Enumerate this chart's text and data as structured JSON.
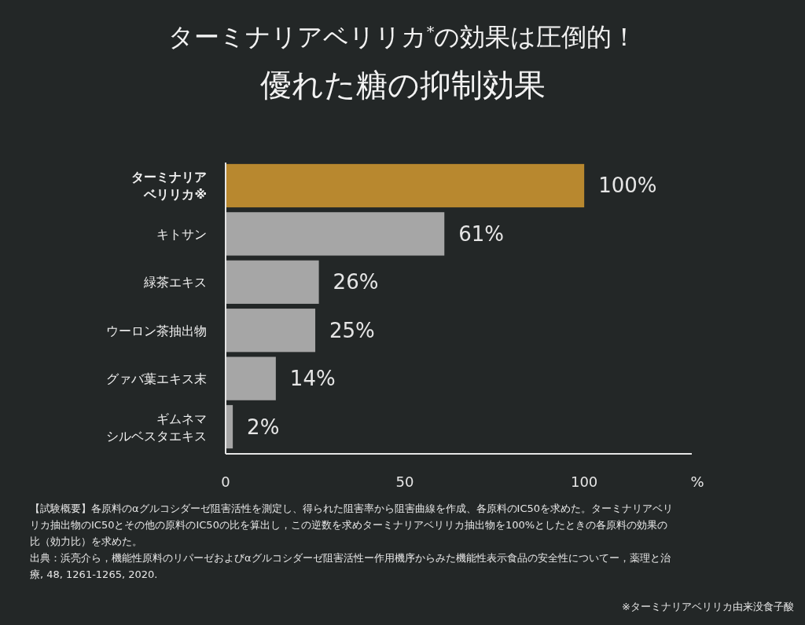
{
  "chart_data": {
    "type": "bar",
    "orientation": "horizontal",
    "title": "ターミナリアベリリカ$^{*}$の効果は圧倒的！",
    "subtitle": "優れた糖の抑制効果",
    "categories": [
      "ターミナリアベリリカ※",
      "キトサン",
      "緑茶エキス",
      "ウーロン茶抽出物",
      "グァバ葉エキス末",
      "ギムネマシルベスタエキス"
    ],
    "values": [
      100,
      61,
      26,
      25,
      14,
      2
    ],
    "colors": [
      "#b8882f",
      "#a6a6a6",
      "#a6a6a6",
      "#a6a6a6",
      "#a6a6a6",
      "#a6a6a6"
    ],
    "value_labels": [
      "100%",
      "61%",
      "26%",
      "25%",
      "14%",
      "2%"
    ],
    "xlim": [
      0,
      130
    ],
    "xticks": [
      0,
      50,
      100
    ],
    "xlabel": "%",
    "grid": false,
    "annotations": [
      "【試験概要】各原料のαグルコシダーゼ阻害活性を測定し、得られた阻害率から阻害曲線を作成、各原料のIC50を求めた。ターミナリアベリ",
      "リカ抽出物のIC50とその他の原料のIC50の比を算出し，この逆数を求めターミナリアベリリカ抽出物を100%としたときの各原料の効果の",
      "比（効力比）を求めた。",
      "出典：浜亮介ら，機能性原料のリパーゼおよびαグルコシダーゼ阻害活性ー作用機序からみた機能性表示食品の安全性についてー，薬理と治",
      "療, 48, 1261-1265, 2020.",
      "※ターミナリアベリリカ由来没食子酸"
    ]
  }
}
